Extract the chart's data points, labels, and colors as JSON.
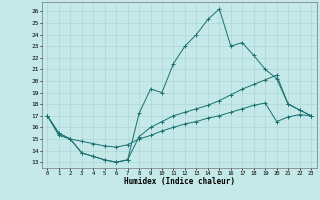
{
  "xlabel": "Humidex (Indice chaleur)",
  "bg_color": "#c5e8e8",
  "line_color": "#1a7070",
  "grid_color": "#aad4d4",
  "xlim": [
    -0.5,
    23.5
  ],
  "ylim": [
    12.5,
    26.8
  ],
  "yticks": [
    13,
    14,
    15,
    16,
    17,
    18,
    19,
    20,
    21,
    22,
    23,
    24,
    25,
    26
  ],
  "xticks": [
    0,
    1,
    2,
    3,
    4,
    5,
    6,
    7,
    8,
    9,
    10,
    11,
    12,
    13,
    14,
    15,
    16,
    17,
    18,
    19,
    20,
    21,
    22,
    23
  ],
  "line1_x": [
    0,
    1,
    2,
    3,
    4,
    5,
    6,
    7,
    8,
    9,
    10,
    11,
    12,
    13,
    14,
    15,
    16,
    17,
    18,
    19,
    20,
    21,
    22,
    23
  ],
  "line1_y": [
    17.0,
    15.5,
    15.0,
    13.8,
    13.5,
    13.2,
    13.0,
    13.2,
    17.2,
    19.3,
    19.0,
    21.5,
    23.0,
    24.0,
    25.3,
    26.2,
    23.0,
    23.3,
    22.2,
    21.0,
    20.2,
    18.0,
    17.5,
    17.0
  ],
  "line2_x": [
    0,
    1,
    2,
    3,
    4,
    5,
    6,
    7,
    8,
    9,
    10,
    11,
    12,
    13,
    14,
    15,
    16,
    17,
    18,
    19,
    20,
    21,
    22,
    23
  ],
  "line2_y": [
    17.0,
    15.5,
    15.0,
    13.8,
    13.5,
    13.2,
    13.0,
    13.2,
    15.2,
    16.0,
    16.5,
    17.0,
    17.3,
    17.6,
    17.9,
    18.3,
    18.8,
    19.3,
    19.7,
    20.1,
    20.5,
    18.0,
    17.5,
    17.0
  ],
  "line3_x": [
    0,
    1,
    2,
    3,
    4,
    5,
    6,
    7,
    8,
    9,
    10,
    11,
    12,
    13,
    14,
    15,
    16,
    17,
    18,
    19,
    20,
    21,
    22,
    23
  ],
  "line3_y": [
    17.0,
    15.3,
    15.0,
    14.8,
    14.6,
    14.4,
    14.3,
    14.5,
    15.0,
    15.3,
    15.7,
    16.0,
    16.3,
    16.5,
    16.8,
    17.0,
    17.3,
    17.6,
    17.9,
    18.1,
    16.5,
    16.9,
    17.1,
    17.0
  ]
}
